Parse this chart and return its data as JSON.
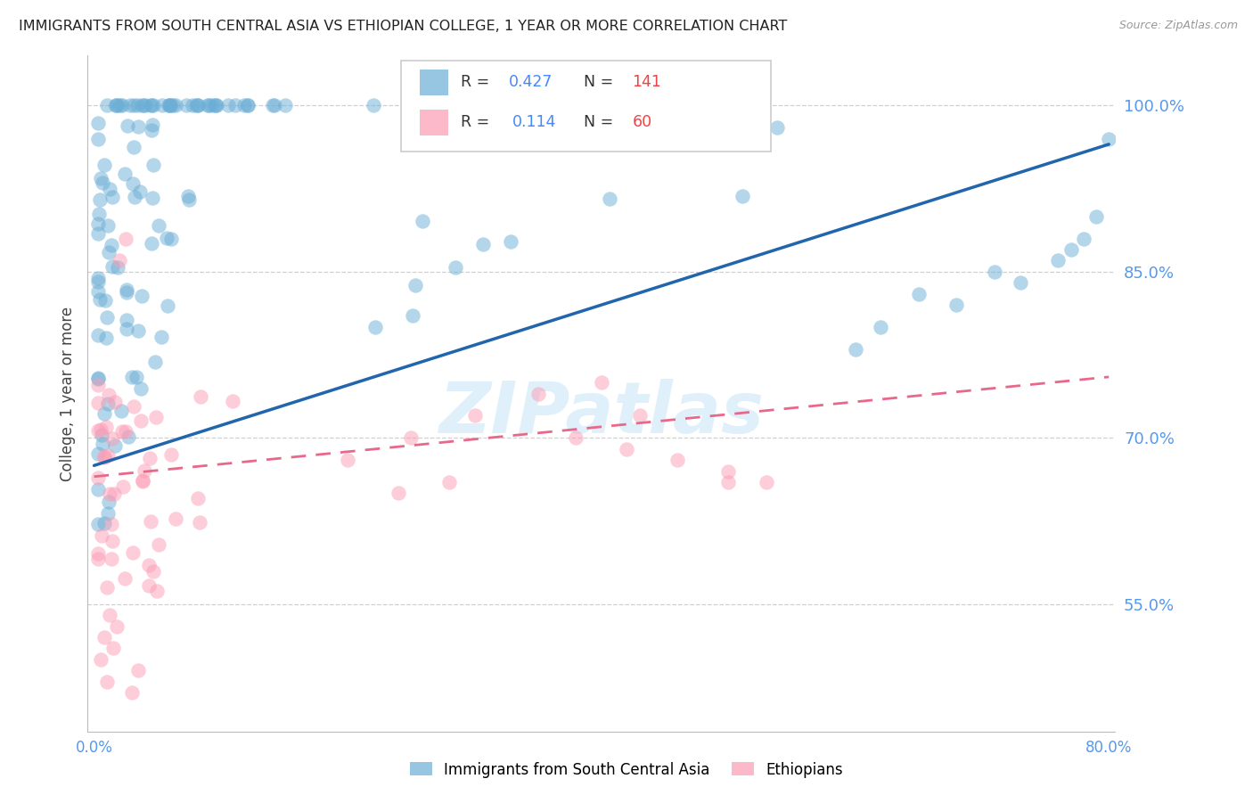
{
  "title": "IMMIGRANTS FROM SOUTH CENTRAL ASIA VS ETHIOPIAN COLLEGE, 1 YEAR OR MORE CORRELATION CHART",
  "source": "Source: ZipAtlas.com",
  "ylabel": "College, 1 year or more",
  "legend_label_blue": "Immigrants from South Central Asia",
  "legend_label_pink": "Ethiopians",
  "R_blue": 0.427,
  "N_blue": 141,
  "R_pink": 0.114,
  "N_pink": 60,
  "xmin": -0.005,
  "xmax": 0.805,
  "ymin": 0.435,
  "ymax": 1.045,
  "yticks": [
    0.55,
    0.7,
    0.85,
    1.0
  ],
  "ytick_labels": [
    "55.0%",
    "70.0%",
    "85.0%",
    "100.0%"
  ],
  "xticks": [
    0.0,
    0.2,
    0.4,
    0.6,
    0.8
  ],
  "xtick_labels": [
    "0.0%",
    "",
    "",
    "",
    "80.0%"
  ],
  "color_blue": "#6baed6",
  "color_pink": "#fc9cb4",
  "line_color_blue": "#2166ac",
  "line_color_pink": "#e8688a",
  "watermark": "ZIPatlas",
  "background_color": "#ffffff",
  "grid_color": "#d0d0d0",
  "axis_label_color": "#5599ee",
  "title_color": "#222222",
  "blue_regression_x0": 0.0,
  "blue_regression_x1": 0.8,
  "blue_regression_y0": 0.675,
  "blue_regression_y1": 0.965,
  "pink_regression_x0": 0.0,
  "pink_regression_x1": 0.8,
  "pink_regression_y0": 0.665,
  "pink_regression_y1": 0.755,
  "legend_R_color_blue": "#4488ff",
  "legend_N_color_blue": "#ee4444",
  "legend_R_color_pink": "#4488ff",
  "legend_N_color_pink": "#ee4444"
}
